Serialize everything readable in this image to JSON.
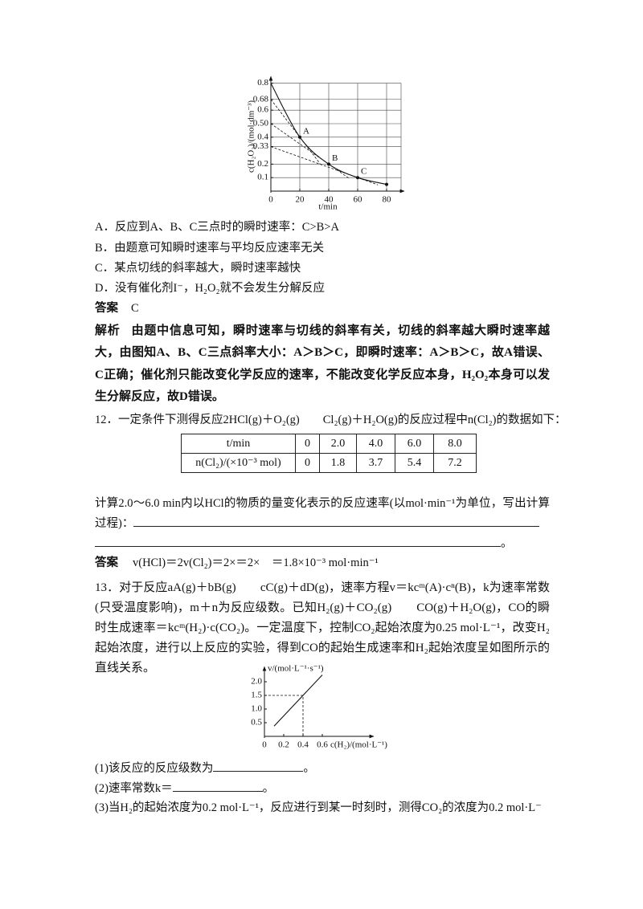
{
  "figure1": {
    "type": "line",
    "y_label": "c(H₂O₂)/(mol·dm⁻³)",
    "x_label": "t/min",
    "x": [
      0,
      20,
      40,
      60,
      80
    ],
    "values": [
      0.8,
      0.4,
      0.2,
      0.1,
      0.05
    ],
    "point_labels": [
      null,
      "A",
      "B",
      "C",
      null
    ],
    "tangent_intercepts": [
      null,
      0.68,
      0.5,
      0.33,
      null
    ],
    "xlim": [
      0,
      90
    ],
    "ylim": [
      0,
      0.85
    ],
    "xticks": [
      0,
      20,
      40,
      60,
      80
    ],
    "yticks": [
      0.1,
      0.2,
      0.33,
      0.4,
      {
        "value": 0.5,
        "label": "0.50"
      },
      0.6,
      0.68,
      0.8
    ],
    "grid": true,
    "color": "#111111"
  },
  "options": [
    "A．反应到A、B、C三点时的瞬时速率：C>B>A",
    "B．由题意可知瞬时速率与平均反应速率无关",
    "C．某点切线的斜率越大，瞬时速率越快",
    "D．没有催化剂I⁻，H₂O₂就不会发生分解反应"
  ],
  "answer1": {
    "label": "答案",
    "text": "C"
  },
  "analysis": {
    "label": "解析",
    "text": "由题中信息可知，瞬时速率与切线的斜率有关，切线的斜率越大瞬时速率越大，由图知A、B、C三点斜率大小：A＞B＞C，即瞬时速率：A＞B＞C，故A错误、C正确；催化剂只能改变化学反应的速率，不能改变化学反应本身，H₂O₂本身可以发生分解反应，故D错误。"
  },
  "q12": {
    "text": "12．一定条件下测得反应2HCl(g)＋O₂(g)　　Cl₂(g)＋H₂O(g)的反应过程中n(Cl₂)的数据如下：",
    "table": {
      "rows": [
        [
          "t/min",
          "0",
          "2.0",
          "4.0",
          "6.0",
          "8.0"
        ],
        [
          "n(Cl₂)/(×10⁻³ mol)",
          "0",
          "1.8",
          "3.7",
          "5.4",
          "7.2"
        ]
      ]
    },
    "question": "计算2.0～6.0 min内以HCl的物质的量变化表示的反应速率(以mol·min⁻¹为单位，写出计算过程)：",
    "end": "。",
    "answer": {
      "label": "答案",
      "text": "v(HCl)＝2v(Cl₂)＝2×＝2×　＝1.8×10⁻³ mol·min⁻¹"
    }
  },
  "q13": {
    "text": "13．对于反应aA(g)＋bB(g)　　cC(g)＋dD(g)，速率方程v＝kcᵐ(A)·cⁿ(B)，k为速率常数(只受温度影响)，m＋n为反应级数。已知H₂(g)＋CO₂(g)　　CO(g)＋H₂O(g)，CO的瞬时生成速率＝kcᵐ(H₂)·c(CO₂)。一定温度下，控制CO₂起始浓度为0.25 mol·L⁻¹，改变H₂起始浓度，进行以上反应的实验，得到CO的起始生成速率和H₂起始浓度呈如图所示的直线关系。",
    "questions": [
      {
        "text": "(1)该反应的反应级数为",
        "end": "。"
      },
      {
        "text": "(2)速率常数k＝",
        "end": "。"
      },
      {
        "text": "(3)当H₂的起始浓度为0.2 mol·L⁻¹，反应进行到某一时刻时，测得CO₂的浓度为0.2 mol·L⁻"
      }
    ]
  },
  "figure2": {
    "type": "line",
    "y_label": "v/(mol·L⁻¹·s⁻¹)",
    "x_label": "c(H₂)/(mol·L⁻¹)",
    "x": [
      0.1,
      0.4,
      0.6
    ],
    "values": [
      0.375,
      1.5,
      2.25
    ],
    "guides": [
      false,
      true,
      false
    ],
    "xlim": [
      0,
      0.9
    ],
    "ylim": [
      0,
      2.55
    ],
    "xticks": [
      0,
      0.2,
      0.4,
      0.6
    ],
    "yticks": [
      0.5,
      {
        "value": 1,
        "label": "1.0"
      },
      1.5,
      {
        "value": 2,
        "label": "2.0"
      }
    ],
    "color": "#111111"
  }
}
